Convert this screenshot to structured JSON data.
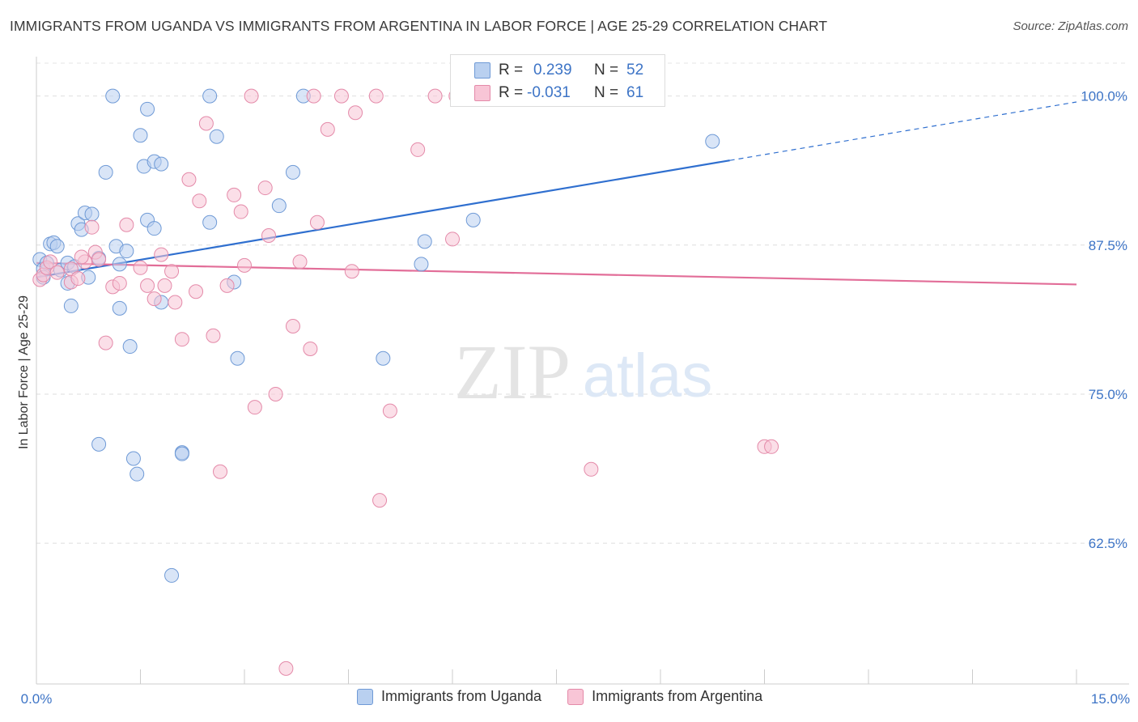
{
  "title": "IMMIGRANTS FROM UGANDA VS IMMIGRANTS FROM ARGENTINA IN LABOR FORCE | AGE 25-29 CORRELATION CHART",
  "source": "Source: ZipAtlas.com",
  "watermark": {
    "zip": "ZIP",
    "atlas": "atlas"
  },
  "stats": {
    "r_label": "R =",
    "n_label": "N =",
    "uganda": {
      "r": "0.239",
      "n": "52"
    },
    "argentina": {
      "r": "-0.031",
      "n": "61"
    }
  },
  "legend": {
    "uganda": "Immigrants from Uganda",
    "argentina": "Immigrants from Argentina"
  },
  "colors": {
    "uganda": "#6f9ad6",
    "uganda_fill": "#b9d0f0",
    "uganda_line": "#2f6fcf",
    "argentina": "#e48aa9",
    "argentina_fill": "#f8c5d6",
    "argentina_line": "#e26d98",
    "tick_text": "#3d74c6"
  },
  "chart_data": {
    "type": "scatter",
    "xlabel": "",
    "ylabel": "In Labor Force | Age 25-29",
    "xlim": [
      0,
      15
    ],
    "ylim": [
      50.7,
      103.3
    ],
    "x_tick_labels": [
      "0.0%",
      "15.0%"
    ],
    "y_ticks": [
      100,
      87.5,
      75,
      62.5
    ],
    "y_tick_labels": [
      "100.0%",
      "87.5%",
      "75.0%",
      "62.5%"
    ],
    "grid": true,
    "legend_position": "bottom",
    "series": [
      {
        "name": "Immigrants from Uganda",
        "points": [
          [
            0.05,
            86.3
          ],
          [
            0.1,
            85.5
          ],
          [
            0.1,
            84.8
          ],
          [
            0.15,
            86.0
          ],
          [
            0.2,
            87.6
          ],
          [
            0.25,
            87.7
          ],
          [
            0.3,
            87.4
          ],
          [
            0.35,
            85.4
          ],
          [
            0.45,
            84.3
          ],
          [
            0.45,
            86.0
          ],
          [
            0.5,
            82.4
          ],
          [
            0.55,
            85.7
          ],
          [
            0.6,
            89.3
          ],
          [
            0.65,
            88.8
          ],
          [
            0.7,
            90.2
          ],
          [
            0.75,
            84.8
          ],
          [
            0.8,
            90.1
          ],
          [
            0.9,
            86.4
          ],
          [
            1.0,
            93.6
          ],
          [
            1.1,
            100.0
          ],
          [
            1.15,
            87.4
          ],
          [
            1.2,
            85.9
          ],
          [
            1.2,
            82.2
          ],
          [
            1.3,
            87.0
          ],
          [
            1.35,
            79.0
          ],
          [
            1.4,
            69.6
          ],
          [
            1.45,
            68.3
          ],
          [
            1.5,
            96.7
          ],
          [
            1.55,
            94.1
          ],
          [
            1.6,
            89.6
          ],
          [
            1.6,
            98.9
          ],
          [
            1.7,
            88.9
          ],
          [
            1.7,
            94.5
          ],
          [
            1.8,
            82.7
          ],
          [
            1.8,
            94.3
          ],
          [
            1.95,
            59.8
          ],
          [
            2.1,
            70.1
          ],
          [
            2.1,
            70.0
          ],
          [
            2.5,
            100.0
          ],
          [
            2.5,
            89.4
          ],
          [
            2.6,
            96.6
          ],
          [
            2.85,
            84.4
          ],
          [
            2.9,
            78.0
          ],
          [
            3.5,
            90.8
          ],
          [
            3.7,
            93.6
          ],
          [
            3.85,
            100.0
          ],
          [
            5.0,
            78.0
          ],
          [
            5.55,
            85.9
          ],
          [
            5.6,
            87.8
          ],
          [
            6.3,
            89.6
          ],
          [
            0.9,
            70.8
          ],
          [
            9.75,
            96.2
          ]
        ]
      },
      {
        "name": "Immigrants from Argentina",
        "points": [
          [
            0.05,
            84.6
          ],
          [
            0.1,
            85.0
          ],
          [
            0.15,
            85.6
          ],
          [
            0.2,
            86.1
          ],
          [
            0.3,
            85.2
          ],
          [
            0.5,
            84.4
          ],
          [
            0.5,
            85.5
          ],
          [
            0.6,
            84.7
          ],
          [
            0.7,
            86.1
          ],
          [
            0.8,
            89.0
          ],
          [
            0.85,
            86.9
          ],
          [
            0.9,
            86.3
          ],
          [
            1.0,
            79.3
          ],
          [
            1.1,
            84.0
          ],
          [
            1.2,
            84.3
          ],
          [
            1.3,
            89.2
          ],
          [
            1.5,
            85.6
          ],
          [
            1.6,
            84.1
          ],
          [
            1.7,
            83.0
          ],
          [
            1.8,
            86.7
          ],
          [
            1.85,
            84.1
          ],
          [
            1.95,
            85.3
          ],
          [
            2.0,
            82.7
          ],
          [
            2.1,
            79.6
          ],
          [
            2.2,
            93.0
          ],
          [
            2.3,
            83.6
          ],
          [
            2.35,
            91.2
          ],
          [
            2.45,
            97.7
          ],
          [
            2.55,
            79.9
          ],
          [
            2.65,
            68.5
          ],
          [
            2.75,
            84.1
          ],
          [
            2.85,
            91.7
          ],
          [
            2.95,
            90.3
          ],
          [
            3.0,
            85.8
          ],
          [
            3.1,
            100.0
          ],
          [
            3.15,
            73.9
          ],
          [
            3.3,
            92.3
          ],
          [
            3.35,
            88.3
          ],
          [
            3.45,
            75.0
          ],
          [
            3.6,
            52.0
          ],
          [
            3.7,
            80.7
          ],
          [
            3.8,
            86.1
          ],
          [
            3.95,
            78.8
          ],
          [
            4.0,
            100.0
          ],
          [
            4.05,
            89.4
          ],
          [
            4.2,
            97.2
          ],
          [
            4.4,
            100.0
          ],
          [
            4.55,
            85.3
          ],
          [
            4.6,
            98.6
          ],
          [
            4.9,
            100.0
          ],
          [
            4.95,
            66.1
          ],
          [
            5.1,
            73.6
          ],
          [
            5.5,
            95.5
          ],
          [
            5.75,
            100.0
          ],
          [
            6.0,
            88.0
          ],
          [
            6.05,
            100.0
          ],
          [
            8.0,
            68.7
          ],
          [
            10.5,
            70.6
          ],
          [
            10.6,
            70.6
          ],
          [
            8.9,
            100.0
          ],
          [
            0.65,
            86.5
          ]
        ]
      }
    ],
    "trendlines": [
      {
        "series": "Immigrants from Uganda",
        "x": [
          0,
          10.0
        ],
        "y": [
          84.8,
          94.6
        ],
        "dashed_extension_to": [
          15,
          99.5
        ]
      },
      {
        "series": "Immigrants from Argentina",
        "x": [
          0,
          15
        ],
        "y": [
          86.0,
          84.2
        ]
      }
    ]
  }
}
